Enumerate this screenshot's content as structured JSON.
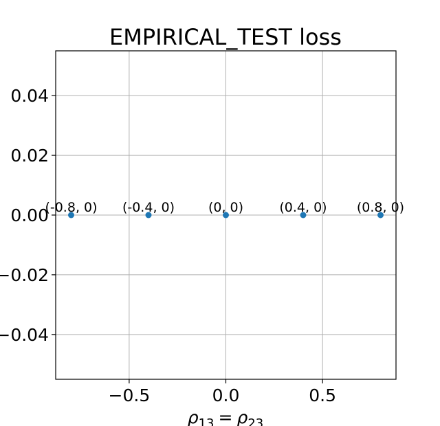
{
  "chart_data": {
    "type": "scatter",
    "title": "EMPIRICAL_TEST loss",
    "xlabel": "ρ13 = ρ23",
    "xlabel_parts": {
      "rho": "ρ",
      "sub1": "13",
      "eq": "=",
      "sub2": "23"
    },
    "ylabel": "",
    "xlim": [
      -0.88,
      0.88
    ],
    "ylim": [
      -0.055,
      0.055
    ],
    "xticks": [
      -0.5,
      0.0,
      0.5
    ],
    "xtick_labels": [
      "−0.5",
      "0.0",
      "0.5"
    ],
    "yticks": [
      -0.04,
      -0.02,
      0.0,
      0.02,
      0.04
    ],
    "ytick_labels": [
      "−0.04",
      "−0.02",
      "0.00",
      "0.02",
      "0.04"
    ],
    "grid": true,
    "points": [
      {
        "x": -0.8,
        "y": 0,
        "label": "(-0.8, 0)"
      },
      {
        "x": -0.4,
        "y": 0,
        "label": "(-0.4, 0)"
      },
      {
        "x": 0.0,
        "y": 0,
        "label": "(0, 0)"
      },
      {
        "x": 0.4,
        "y": 0,
        "label": "(0.4, 0)"
      },
      {
        "x": 0.8,
        "y": 0,
        "label": "(0.8, 0)"
      }
    ],
    "marker_color": "#1f77b4"
  }
}
